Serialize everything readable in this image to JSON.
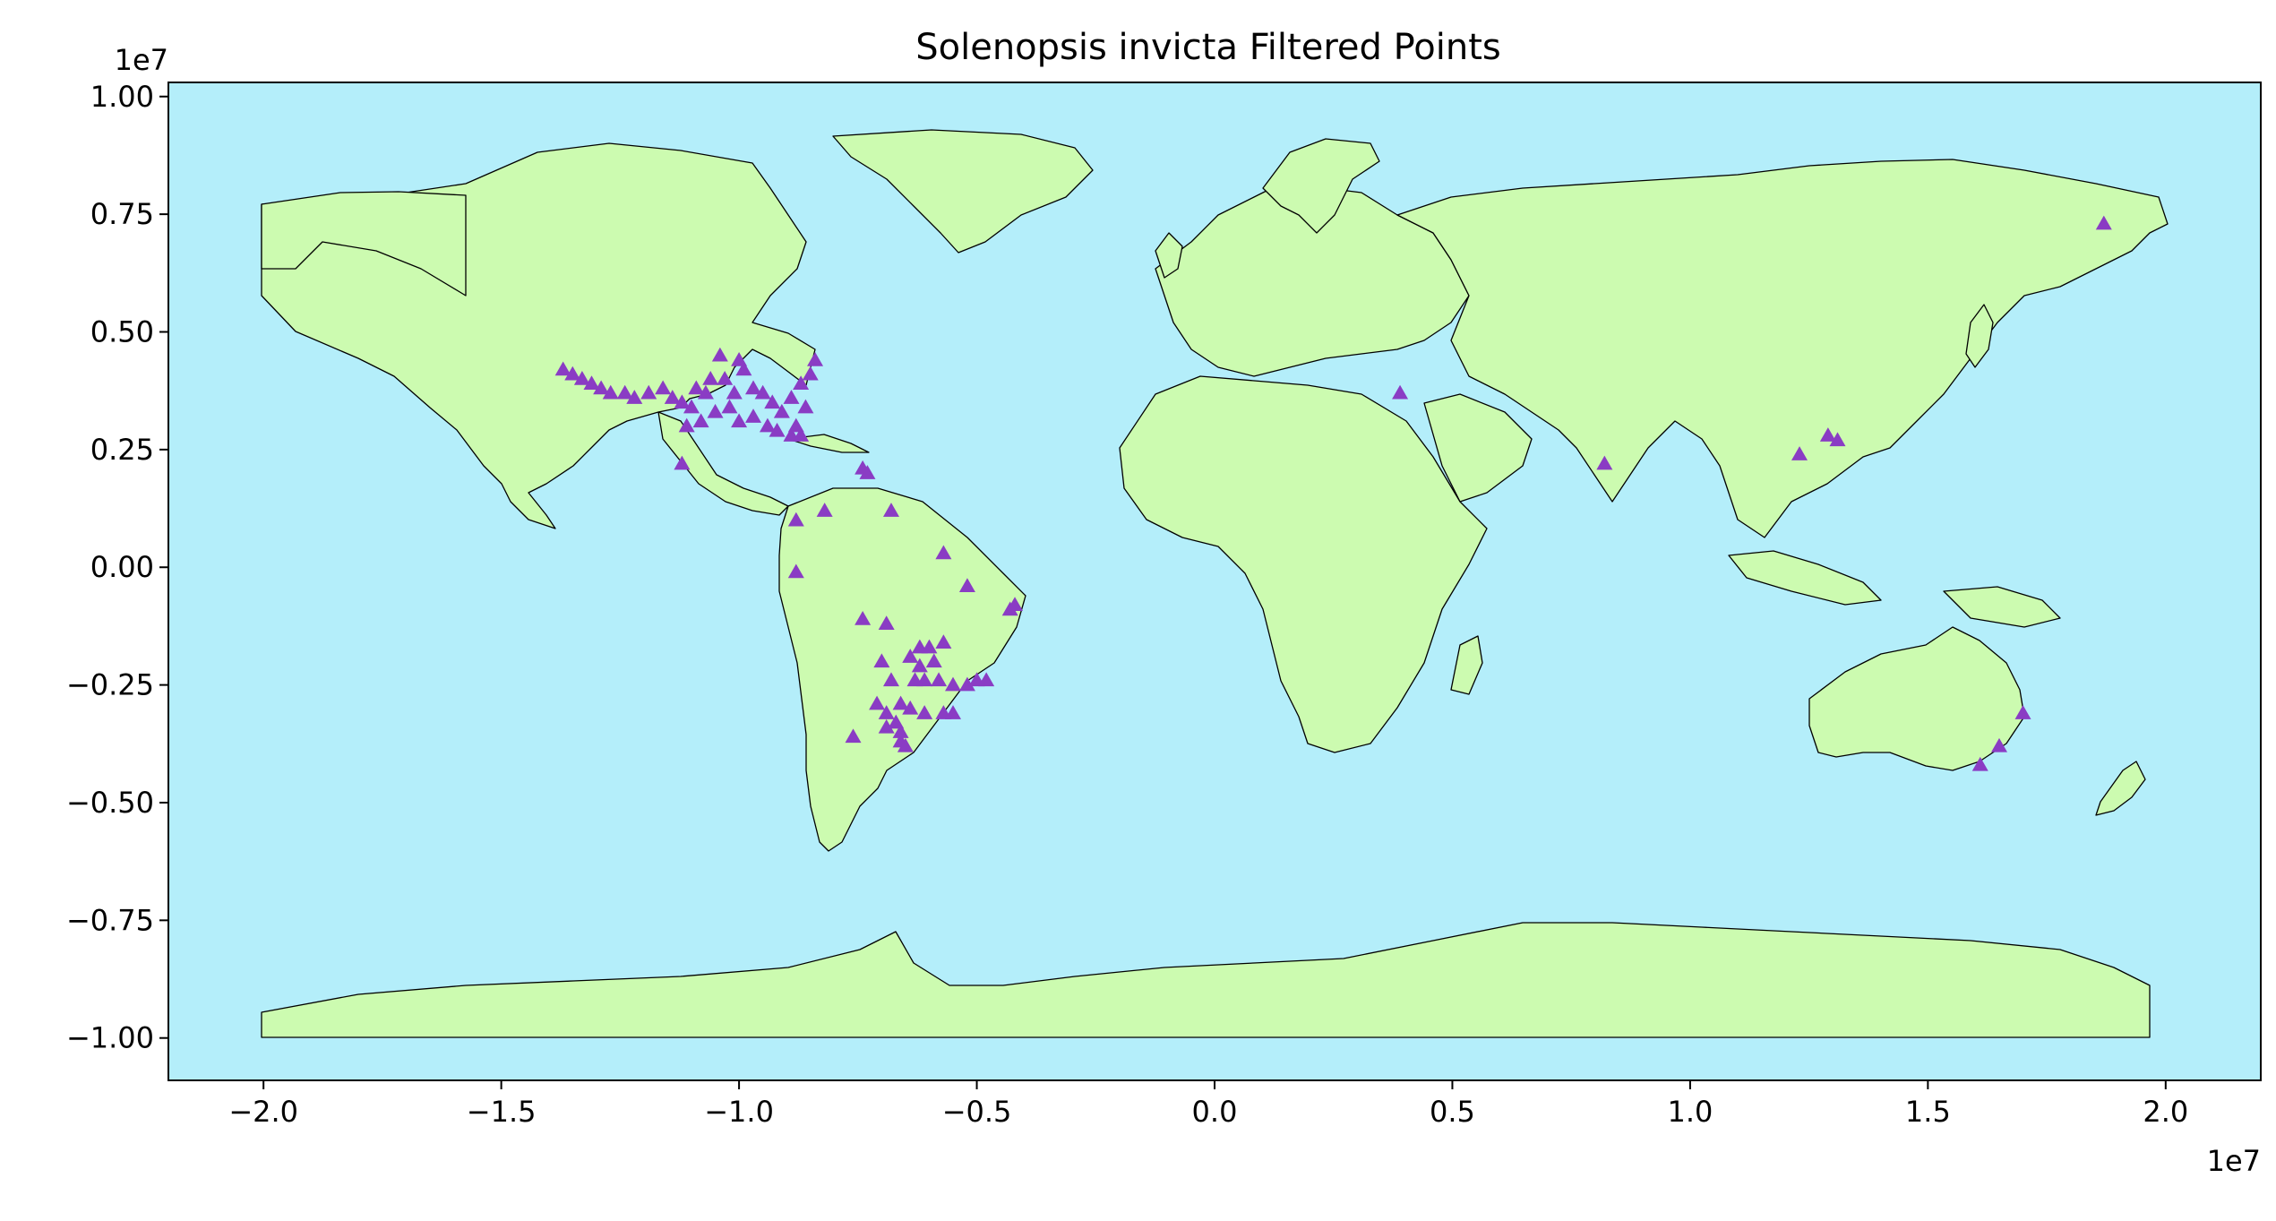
{
  "chart_data": {
    "type": "scatter",
    "title": "Solenopsis invicta Filtered Points",
    "xlabel": "",
    "ylabel": "",
    "x_offset_label": "1e7",
    "y_offset_label": "1e7",
    "xlim": [
      -2.2,
      2.2
    ],
    "ylim": [
      -1.09,
      1.03
    ],
    "x_ticks": [
      {
        "value": -2.0,
        "label": "−2.0"
      },
      {
        "value": -1.5,
        "label": "−1.5"
      },
      {
        "value": -1.0,
        "label": "−1.0"
      },
      {
        "value": -0.5,
        "label": "−0.5"
      },
      {
        "value": 0.0,
        "label": "0.0"
      },
      {
        "value": 0.5,
        "label": "0.5"
      },
      {
        "value": 1.0,
        "label": "1.0"
      },
      {
        "value": 1.5,
        "label": "1.5"
      },
      {
        "value": 2.0,
        "label": "2.0"
      }
    ],
    "y_ticks": [
      {
        "value": 1.0,
        "label": "1.00"
      },
      {
        "value": 0.75,
        "label": "0.75"
      },
      {
        "value": 0.5,
        "label": "0.50"
      },
      {
        "value": 0.25,
        "label": "0.25"
      },
      {
        "value": 0.0,
        "label": "0.00"
      },
      {
        "value": -0.25,
        "label": "−0.25"
      },
      {
        "value": -0.5,
        "label": "−0.50"
      },
      {
        "value": -0.75,
        "label": "−0.75"
      },
      {
        "value": -1.0,
        "label": "−1.00"
      }
    ],
    "grid": false,
    "colors": {
      "ocean": "#b4eefa",
      "land": "#ccfbb0",
      "border": "#000000",
      "marker": "#8a3cc4"
    },
    "marker": "triangle",
    "points": [
      [
        -1.37,
        0.42
      ],
      [
        -1.35,
        0.41
      ],
      [
        -1.33,
        0.4
      ],
      [
        -1.31,
        0.39
      ],
      [
        -1.29,
        0.38
      ],
      [
        -1.27,
        0.37
      ],
      [
        -1.24,
        0.37
      ],
      [
        -1.22,
        0.36
      ],
      [
        -1.19,
        0.37
      ],
      [
        -1.16,
        0.38
      ],
      [
        -1.14,
        0.36
      ],
      [
        -1.12,
        0.35
      ],
      [
        -1.1,
        0.34
      ],
      [
        -1.09,
        0.38
      ],
      [
        -1.07,
        0.37
      ],
      [
        -1.06,
        0.4
      ],
      [
        -1.04,
        0.45
      ],
      [
        -1.03,
        0.4
      ],
      [
        -1.01,
        0.37
      ],
      [
        -0.99,
        0.42
      ],
      [
        -0.97,
        0.38
      ],
      [
        -0.95,
        0.37
      ],
      [
        -0.93,
        0.35
      ],
      [
        -0.91,
        0.33
      ],
      [
        -0.89,
        0.36
      ],
      [
        -0.87,
        0.39
      ],
      [
        -0.85,
        0.41
      ],
      [
        -0.84,
        0.44
      ],
      [
        -0.86,
        0.34
      ],
      [
        -0.88,
        0.3
      ],
      [
        -1.11,
        0.3
      ],
      [
        -1.08,
        0.31
      ],
      [
        -1.05,
        0.33
      ],
      [
        -1.02,
        0.34
      ],
      [
        -1.0,
        0.31
      ],
      [
        -0.97,
        0.32
      ],
      [
        -0.94,
        0.3
      ],
      [
        -0.92,
        0.29
      ],
      [
        -0.89,
        0.28
      ],
      [
        -0.87,
        0.28
      ],
      [
        -1.0,
        0.44
      ],
      [
        -1.12,
        0.22
      ],
      [
        -0.74,
        0.21
      ],
      [
        -0.73,
        0.2
      ],
      [
        -0.68,
        0.12
      ],
      [
        -0.82,
        0.12
      ],
      [
        -0.88,
        0.1
      ],
      [
        -0.88,
        -0.01
      ],
      [
        -0.57,
        0.03
      ],
      [
        -0.52,
        -0.04
      ],
      [
        -0.42,
        -0.08
      ],
      [
        -0.43,
        -0.09
      ],
      [
        -0.74,
        -0.11
      ],
      [
        -0.69,
        -0.12
      ],
      [
        -0.62,
        -0.17
      ],
      [
        -0.6,
        -0.17
      ],
      [
        -0.57,
        -0.16
      ],
      [
        -0.7,
        -0.2
      ],
      [
        -0.64,
        -0.19
      ],
      [
        -0.62,
        -0.21
      ],
      [
        -0.59,
        -0.2
      ],
      [
        -0.58,
        -0.24
      ],
      [
        -0.61,
        -0.24
      ],
      [
        -0.63,
        -0.24
      ],
      [
        -0.68,
        -0.24
      ],
      [
        -0.71,
        -0.29
      ],
      [
        -0.69,
        -0.31
      ],
      [
        -0.66,
        -0.29
      ],
      [
        -0.64,
        -0.3
      ],
      [
        -0.61,
        -0.31
      ],
      [
        -0.57,
        -0.31
      ],
      [
        -0.55,
        -0.31
      ],
      [
        -0.67,
        -0.33
      ],
      [
        -0.66,
        -0.35
      ],
      [
        -0.66,
        -0.37
      ],
      [
        -0.65,
        -0.38
      ],
      [
        -0.76,
        -0.36
      ],
      [
        -0.69,
        -0.34
      ],
      [
        -0.55,
        -0.25
      ],
      [
        -0.52,
        -0.25
      ],
      [
        -0.5,
        -0.24
      ],
      [
        -0.48,
        -0.24
      ],
      [
        0.39,
        0.37
      ],
      [
        0.82,
        0.22
      ],
      [
        1.23,
        0.24
      ],
      [
        1.29,
        0.28
      ],
      [
        1.31,
        0.27
      ],
      [
        1.87,
        0.73
      ],
      [
        1.7,
        -0.31
      ],
      [
        1.65,
        -0.38
      ],
      [
        1.61,
        -0.42
      ]
    ]
  }
}
